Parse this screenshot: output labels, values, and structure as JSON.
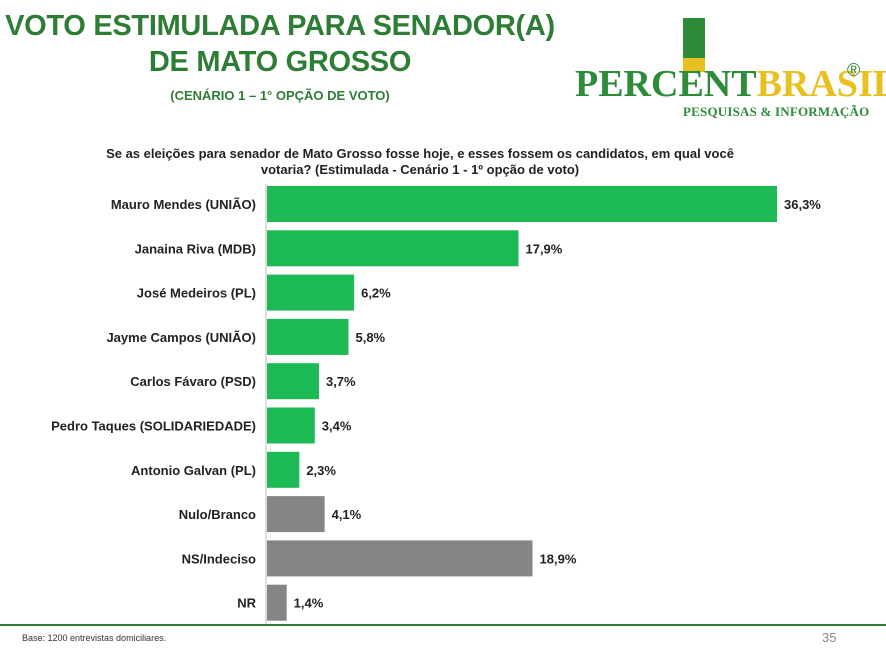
{
  "header": {
    "title_line1": "VOTO ESTIMULADA PARA SENADOR(A)",
    "title_line2": "DE MATO GROSSO",
    "subtitle": "(CENÁRIO 1 – 1° OPÇÃO DE VOTO)"
  },
  "logo": {
    "word_part1": "PERCENT",
    "word_part2": "BRASIL",
    "registered": "®",
    "tagline": "PESQUISAS & INFORMAÇÃO"
  },
  "question": {
    "line1": "Se as eleições para senador de Mato Grosso fosse hoje, e esses fossem os candidatos, em qual você",
    "line2": "votaria? (Estimulada - Cenário 1 - 1º opção de voto)"
  },
  "footer": {
    "base": "Base: 1200 entrevistas domiciliares.",
    "page_number": "35"
  },
  "colors": {
    "candidate_bar": "#1db954",
    "other_bar": "#858585",
    "brand_green": "#2e7d34"
  },
  "chart_data": {
    "type": "bar",
    "orientation": "horizontal",
    "categories": [
      "Mauro Mendes (UNIÃO)",
      "Janaina Riva (MDB)",
      "José Medeiros (PL)",
      "Jayme Campos (UNIÃO)",
      "Carlos Fávaro (PSD)",
      "Pedro Taques (SOLIDARIEDADE)",
      "Antonio Galvan (PL)",
      "Nulo/Branco",
      "NS/Indeciso",
      "NR"
    ],
    "values": [
      36.3,
      17.9,
      6.2,
      5.8,
      3.7,
      3.4,
      2.3,
      4.1,
      18.9,
      1.4
    ],
    "value_labels": [
      "36,3%",
      "17,9%",
      "6,2%",
      "5,8%",
      "3,7%",
      "3,4%",
      "2,3%",
      "4,1%",
      "18,9%",
      "1,4%"
    ],
    "bar_groups": [
      "candidate",
      "candidate",
      "candidate",
      "candidate",
      "candidate",
      "candidate",
      "candidate",
      "other",
      "other",
      "other"
    ],
    "xlim": [
      0,
      36.3
    ],
    "grid": false
  }
}
